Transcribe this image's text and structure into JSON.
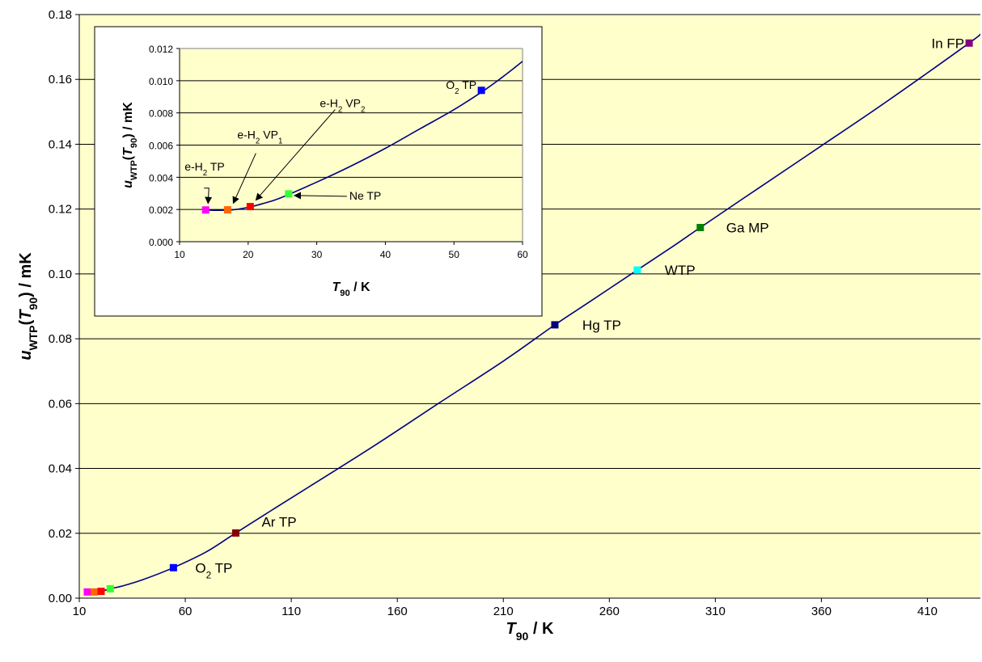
{
  "chart_data": [
    {
      "type": "scatter",
      "role": "main",
      "xlim": [
        10,
        435
      ],
      "ylim": [
        0,
        0.18
      ],
      "xticks": [
        10,
        60,
        110,
        160,
        210,
        260,
        310,
        360,
        410
      ],
      "yticks": [
        0.0,
        0.02,
        0.04,
        0.06,
        0.08,
        0.1,
        0.12,
        0.14,
        0.16,
        0.18
      ],
      "ytick_labels": [
        "0.00",
        "0.02",
        "0.04",
        "0.06",
        "0.08",
        "0.10",
        "0.12",
        "0.14",
        "0.16",
        "0.18"
      ],
      "grid": "horizontal",
      "plot_bg": "#ffffcc",
      "line_color": "#000080",
      "xlabel": {
        "main": "T",
        "sub": "90",
        "rest": " / K"
      },
      "ylabel": {
        "u": "u",
        "sub1": "WTP",
        "open": "(",
        "T": "T",
        "sub2": "90",
        "rest": ") / mK"
      },
      "curve": {
        "x": [
          13.8,
          17.0,
          20.3,
          24.6,
          30,
          40,
          54.4,
          70,
          83.8,
          100,
          120,
          150,
          180,
          210,
          234.3,
          250,
          273.16,
          290,
          302.9,
          330,
          360,
          390,
          429.7,
          435
        ],
        "y": [
          0.002,
          0.002,
          0.0021,
          0.0029,
          0.0037,
          0.0057,
          0.0094,
          0.0143,
          0.0201,
          0.0268,
          0.035,
          0.0474,
          0.0603,
          0.0731,
          0.0843,
          0.0911,
          0.1012,
          0.1085,
          0.1143,
          0.1263,
          0.1395,
          0.1528,
          0.1712,
          0.174
        ]
      },
      "points": [
        {
          "x": 13.8,
          "y": 0.0019,
          "color": "#ff00ff"
        },
        {
          "x": 17.0,
          "y": 0.0019,
          "color": "#ff6600"
        },
        {
          "x": 20.3,
          "y": 0.0021,
          "color": "#ff0000"
        },
        {
          "x": 24.6,
          "y": 0.0029,
          "color": "#33ff33"
        },
        {
          "x": 54.4,
          "y": 0.0094,
          "color": "#0000ff"
        },
        {
          "x": 83.8,
          "y": 0.0201,
          "color": "#800000"
        },
        {
          "x": 234.3,
          "y": 0.0843,
          "color": "#000080"
        },
        {
          "x": 273.16,
          "y": 0.1012,
          "color": "#00ffff"
        },
        {
          "x": 302.9,
          "y": 0.1143,
          "color": "#008000"
        },
        {
          "x": 429.7,
          "y": 0.1712,
          "color": "#800080"
        }
      ],
      "annotations": [
        {
          "text": "In FP",
          "x": 429.7,
          "y": 0.1712,
          "anchor": "end",
          "dx": -6,
          "dy": 6
        },
        {
          "text": "Ga MP",
          "x": 302.9,
          "y": 0.1143,
          "anchor": "start",
          "dx": 32,
          "dy": 6
        },
        {
          "text": "WTP",
          "x": 273.16,
          "y": 0.1012,
          "anchor": "start",
          "dx": 34,
          "dy": 6
        },
        {
          "text": "Hg TP",
          "x": 234.3,
          "y": 0.0843,
          "anchor": "start",
          "dx": 34,
          "dy": 6
        },
        {
          "text": "Ar TP",
          "x": 83.8,
          "y": 0.0201,
          "anchor": "start",
          "dx": 32,
          "dy": -8
        },
        {
          "text": "O",
          "sub": "2",
          "rest": " TP",
          "x": 54.4,
          "y": 0.0094,
          "anchor": "start",
          "dx": 27,
          "dy": 6
        }
      ]
    },
    {
      "type": "scatter",
      "role": "inset",
      "xlim": [
        10,
        60
      ],
      "ylim": [
        0,
        0.012
      ],
      "xticks": [
        10,
        20,
        30,
        40,
        50,
        60
      ],
      "yticks": [
        0.0,
        0.002,
        0.004,
        0.006,
        0.008,
        0.01,
        0.012
      ],
      "ytick_labels": [
        "0.000",
        "0.002",
        "0.004",
        "0.006",
        "0.008",
        "0.010",
        "0.012"
      ],
      "grid": "horizontal",
      "plot_bg": "#ffffcc",
      "line_color": "#000080",
      "xlabel": {
        "main": "T",
        "sub": "90",
        "rest": " / K"
      },
      "ylabel": {
        "u": "u",
        "sub1": "WTP",
        "open": "(",
        "T": "T",
        "sub2": "90",
        "rest": ") / mK"
      },
      "curve": {
        "x": [
          13.8,
          15,
          17.0,
          18.5,
          20.3,
          22,
          24.6,
          30,
          35,
          40,
          45,
          50,
          54.4,
          57,
          60
        ],
        "y": [
          0.00197,
          0.00195,
          0.00196,
          0.00202,
          0.00216,
          0.00235,
          0.0027,
          0.0037,
          0.0047,
          0.0058,
          0.007,
          0.0082,
          0.0094,
          0.0102,
          0.0112
        ]
      },
      "points": [
        {
          "x": 13.8,
          "y": 0.00197,
          "color": "#ff00ff"
        },
        {
          "x": 17.0,
          "y": 0.00198,
          "color": "#ff6600"
        },
        {
          "x": 20.3,
          "y": 0.00218,
          "color": "#ff0000"
        },
        {
          "x": 25.9,
          "y": 0.00297,
          "color": "#33ff33"
        },
        {
          "x": 54.0,
          "y": 0.0094,
          "color": "#0000ff"
        }
      ],
      "annotations": [
        {
          "text": "O",
          "sub": "2",
          "rest": " TP",
          "x": 54.0,
          "y": 0.0094,
          "anchor": "end",
          "dx": -6,
          "dy": -2
        },
        {
          "text": "e-H",
          "sub": "2",
          "rest": " TP",
          "x": 13.8,
          "y": 0.00197,
          "anchor": "start",
          "dx": -26,
          "dy": -49
        },
        {
          "text": "e-H",
          "sub": "2",
          "rest": " VP",
          "sub2": "1",
          "x": 17.0,
          "y": 0.00198,
          "anchor": "start",
          "dx": 12,
          "dy": -88
        },
        {
          "text": "e-H",
          "sub": "2",
          "rest": " VP",
          "sub2": "2",
          "x": 20.3,
          "y": 0.00218,
          "anchor": "start",
          "dx": 86,
          "dy": -123
        },
        {
          "text": "Ne TP",
          "x": 25.9,
          "y": 0.00297,
          "anchor": "start",
          "dx": 75,
          "dy": 7
        }
      ],
      "arrows": [
        {
          "x": 13.8,
          "y": 0.00197,
          "from_dx": -2,
          "from_dy": -27,
          "to_dx": 3,
          "to_dy": -8,
          "elbow_dx": 4
        },
        {
          "x": 17.0,
          "y": 0.00198,
          "from_dx": 35,
          "from_dy": -70,
          "to_dx": 7,
          "to_dy": -8
        },
        {
          "x": 20.3,
          "y": 0.00218,
          "from_dx": 105,
          "from_dy": -120,
          "to_dx": 7,
          "to_dy": -8
        },
        {
          "x": 25.9,
          "y": 0.00297,
          "from_dx": 72,
          "from_dy": 3,
          "to_dx": 7,
          "to_dy": 2
        }
      ]
    }
  ]
}
